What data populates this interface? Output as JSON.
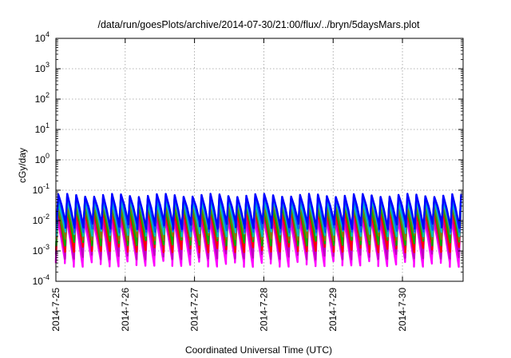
{
  "chart_data": {
    "type": "line",
    "title": "/data/run/goesPlots/archive/2014-07-30/21:00/flux/../bryn/5daysMars.plot",
    "xlabel": "Coordinated Universal Time (UTC)",
    "ylabel": "cGy/day",
    "y_scale": "log",
    "ylim": [
      0.0001,
      10000
    ],
    "xlim": [
      "2014-07-25",
      "2014-07-30T21:00"
    ],
    "grid": true,
    "legend": "none",
    "y_ticks": [
      {
        "base": "10",
        "exp": "-4"
      },
      {
        "base": "10",
        "exp": "-3"
      },
      {
        "base": "10",
        "exp": "-2"
      },
      {
        "base": "10",
        "exp": "-1"
      },
      {
        "base": "10",
        "exp": "0"
      },
      {
        "base": "10",
        "exp": "1"
      },
      {
        "base": "10",
        "exp": "2"
      },
      {
        "base": "10",
        "exp": "3"
      },
      {
        "base": "10",
        "exp": "4"
      }
    ],
    "x_ticks": [
      "2014-7-25",
      "2014-7-26",
      "2014-7-27",
      "2014-7-28",
      "2014-7-29",
      "2014-7-30"
    ],
    "pulse_period_hours": 3.1,
    "series": [
      {
        "color": "#ff00ff",
        "peak": 0.011,
        "trough": 0.0004
      },
      {
        "color": "#c000c0",
        "peak": 0.015,
        "trough": 0.0007
      },
      {
        "color": "#ff0000",
        "peak": 0.022,
        "trough": 0.0012
      },
      {
        "color": "#00b000",
        "peak": 0.03,
        "trough": 0.002
      },
      {
        "color": "#808000",
        "peak": 0.035,
        "trough": 0.003
      },
      {
        "color": "#00c0c0",
        "peak": 0.045,
        "trough": 0.004
      },
      {
        "color": "#0060ff",
        "peak": 0.06,
        "trough": 0.0055
      },
      {
        "color": "#0000ff",
        "peak": 0.068,
        "trough": 0.007
      }
    ]
  }
}
